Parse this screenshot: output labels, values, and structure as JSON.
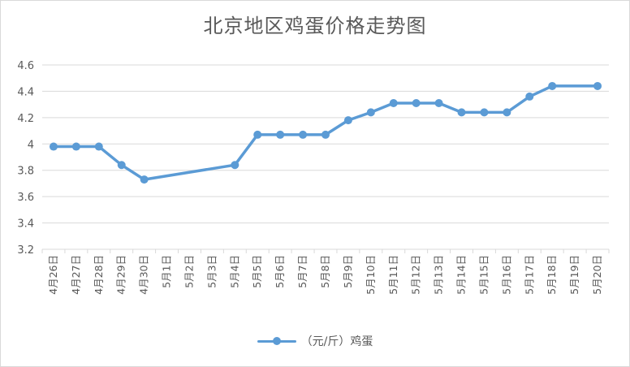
{
  "chart_data": {
    "type": "line",
    "title": "北京地区鸡蛋价格走势图",
    "xlabel": "",
    "ylabel": "",
    "ylim": [
      3.2,
      4.6
    ],
    "yticks": [
      "3.2",
      "3.4",
      "3.6",
      "3.8",
      "4",
      "4.2",
      "4.4",
      "4.6"
    ],
    "grid": true,
    "legend_position": "bottom",
    "categories": [
      "4月26日",
      "4月27日",
      "4月28日",
      "4月29日",
      "4月30日",
      "5月1日",
      "5月2日",
      "5月3日",
      "5月4日",
      "5月5日",
      "5月6日",
      "5月7日",
      "5月8日",
      "5月9日",
      "5月10日",
      "5月11日",
      "5月12日",
      "5月13日",
      "5月14日",
      "5月15日",
      "5月16日",
      "5月17日",
      "5月18日",
      "5月19日",
      "5月20日"
    ],
    "series": [
      {
        "name": "（元/斤）鸡蛋",
        "color": "#5b9bd5",
        "values": [
          3.98,
          3.98,
          3.98,
          3.84,
          3.73,
          null,
          null,
          null,
          3.84,
          4.07,
          4.07,
          4.07,
          4.07,
          4.18,
          4.24,
          4.31,
          4.31,
          4.31,
          4.24,
          4.24,
          4.24,
          4.36,
          4.44,
          null,
          4.44
        ]
      }
    ]
  }
}
